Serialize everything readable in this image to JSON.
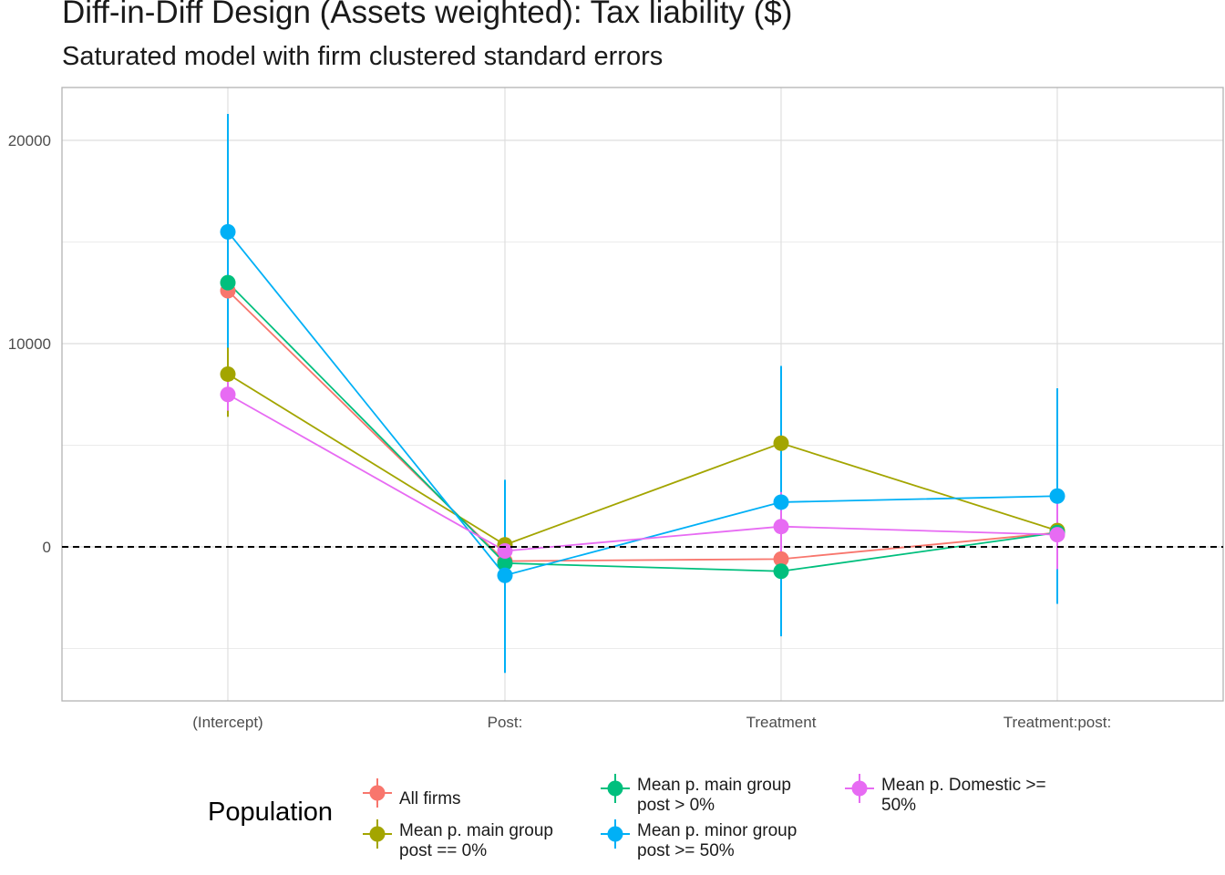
{
  "title": "Diff-in-Diff Design (Assets weighted): Tax liability  ($)",
  "subtitle": "Saturated model with firm clustered standard errors",
  "legend_title": "Population",
  "chart_data": {
    "type": "line",
    "x_categories": [
      "(Intercept)",
      "Post:",
      "Treatment",
      "Treatment:post:"
    ],
    "y_ticks": [
      0,
      10000,
      20000
    ],
    "ylim": [
      -7500,
      22800
    ],
    "reference_line": {
      "y": 0,
      "style": "dashed"
    },
    "grid": true,
    "legend_position": "bottom",
    "series": [
      {
        "name": "All firms",
        "color": "#F8766D",
        "values": [
          12600,
          -700,
          -600,
          700
        ],
        "lower": [
          10800,
          -1300,
          -1200,
          -100
        ],
        "upper": [
          14400,
          -100,
          0,
          1500
        ]
      },
      {
        "name": "Mean p. main group post == 0%",
        "color": "#A3A500",
        "values": [
          8500,
          100,
          5100,
          800
        ],
        "lower": [
          6400,
          -400,
          3100,
          200
        ],
        "upper": [
          9800,
          600,
          7100,
          1400
        ]
      },
      {
        "name": "Mean p. main group post > 0%",
        "color": "#00BF7D",
        "values": [
          13000,
          -800,
          -1200,
          700
        ],
        "lower": [
          11000,
          -1600,
          -2500,
          -100
        ],
        "upper": [
          15000,
          0,
          100,
          1500
        ]
      },
      {
        "name": "Mean p. minor group post >= 50%",
        "color": "#00B0F6",
        "values": [
          15500,
          -1400,
          2200,
          2500
        ],
        "lower": [
          9800,
          -6200,
          -4400,
          -2800
        ],
        "upper": [
          21300,
          3300,
          8900,
          7800
        ]
      },
      {
        "name": "Mean p. Domestic >= 50%",
        "color": "#E76BF3",
        "values": [
          7500,
          -200,
          1000,
          600
        ],
        "lower": [
          6700,
          -700,
          -700,
          -1100
        ],
        "upper": [
          8300,
          300,
          2700,
          2300
        ]
      }
    ]
  },
  "legend": [
    {
      "line1": "All firms",
      "line2": "",
      "color": "#F8766D"
    },
    {
      "line1": "Mean p. main group",
      "line2": "post == 0%",
      "color": "#A3A500"
    },
    {
      "line1": "Mean p. main group",
      "line2": "post > 0%",
      "color": "#00BF7D"
    },
    {
      "line1": "Mean p. minor group",
      "line2": "post >= 50%",
      "color": "#00B0F6"
    },
    {
      "line1": "Mean p. Domestic >=",
      "line2": "50%",
      "color": "#E76BF3"
    }
  ]
}
